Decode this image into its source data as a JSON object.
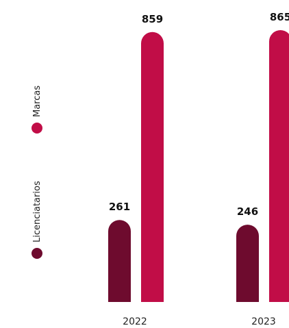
{
  "chart_data": {
    "type": "bar",
    "categories": [
      "2022",
      "2023"
    ],
    "series": [
      {
        "name": "Licenciatarios",
        "values": [
          261,
          246
        ],
        "color": "#6e0b2e"
      },
      {
        "name": "Marcas",
        "values": [
          859,
          865
        ],
        "color": "#c10d47"
      }
    ],
    "title": "",
    "xlabel": "",
    "ylabel": "",
    "ylim": [
      0,
      865
    ],
    "grid": false,
    "legend_position": "left-vertical"
  }
}
